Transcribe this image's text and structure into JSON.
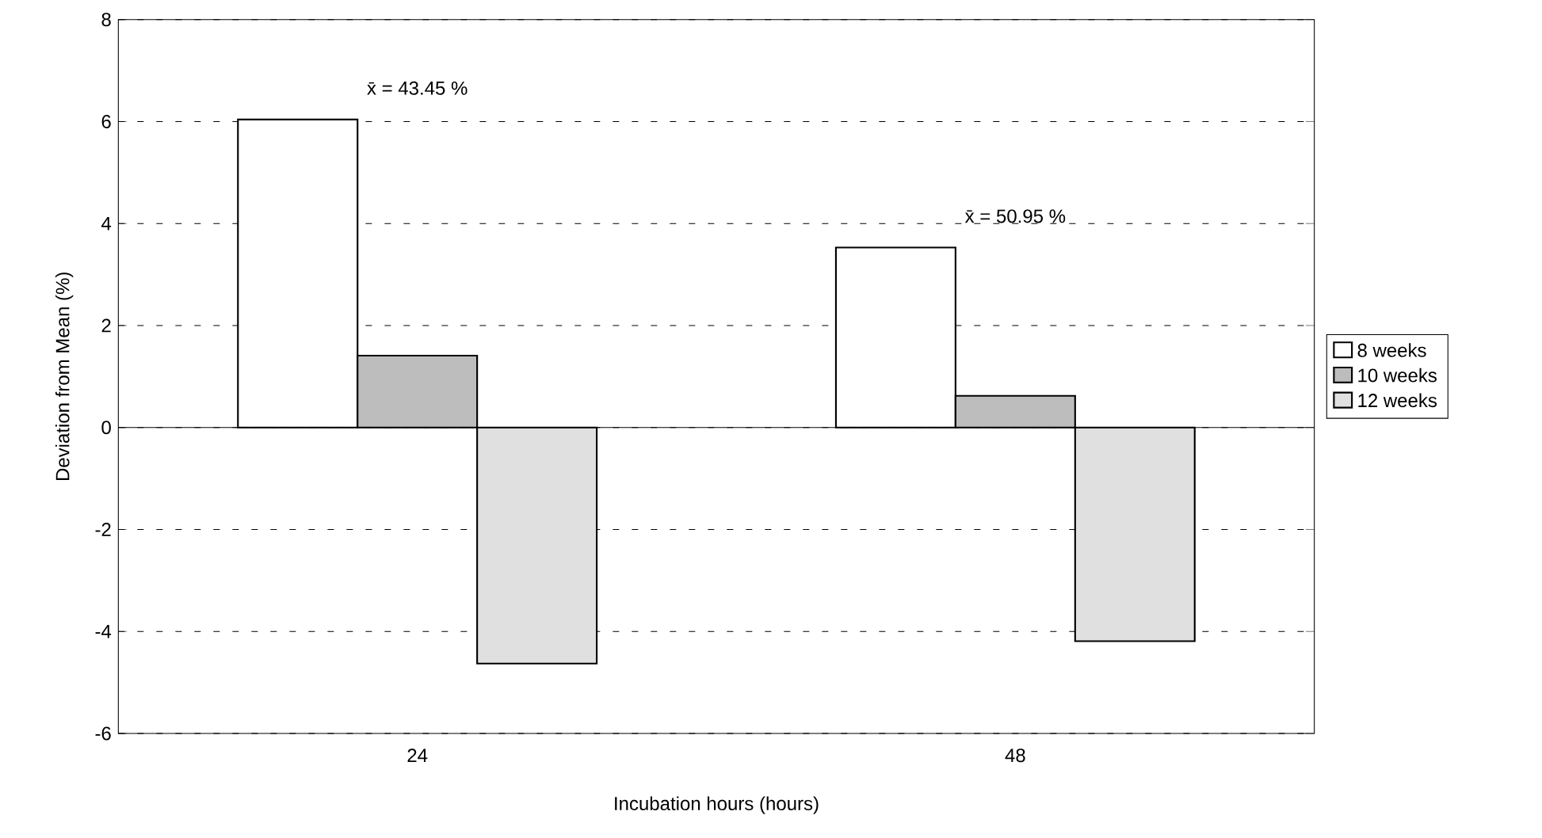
{
  "chart_data": {
    "type": "bar",
    "xlabel": "Incubation hours (hours)",
    "ylabel": "Deviation from Mean (%)",
    "categories": [
      "24",
      "48"
    ],
    "series": [
      {
        "name": "8 weeks",
        "color": "#ffffff",
        "values": [
          6.04,
          3.53
        ]
      },
      {
        "name": "10 weeks",
        "color": "#bdbdbd",
        "values": [
          1.41,
          0.62
        ]
      },
      {
        "name": "12 weeks",
        "color": "#e0e0e0",
        "values": [
          -4.63,
          -4.19
        ]
      }
    ],
    "ylim": [
      -6,
      8
    ],
    "yticks": [
      -6,
      -4,
      -2,
      0,
      2,
      4,
      6,
      8
    ],
    "grid": "y",
    "legend": "right",
    "annotations": [
      "x̄ = 43.45 %",
      "x̄ = 50.95 %"
    ]
  }
}
